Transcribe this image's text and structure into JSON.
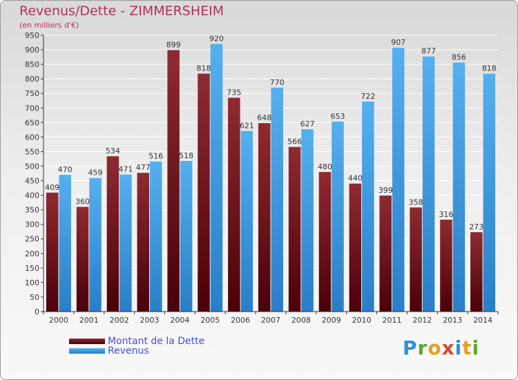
{
  "chart_data": {
    "type": "bar",
    "title": "Revenus/Dette - ZIMMERSHEIM",
    "subtitle": "(en milliers d'€)",
    "categories": [
      "2000",
      "2001",
      "2002",
      "2003",
      "2004",
      "2005",
      "2006",
      "2007",
      "2008",
      "2009",
      "2010",
      "2011",
      "2012",
      "2013",
      "2014"
    ],
    "series": [
      {
        "name": "Montant de la Dette",
        "values": [
          409,
          360,
          534,
          477,
          899,
          818,
          735,
          648,
          566,
          480,
          440,
          399,
          358,
          316,
          273
        ]
      },
      {
        "name": "Revenus",
        "values": [
          470,
          459,
          471,
          516,
          518,
          920,
          621,
          770,
          627,
          653,
          722,
          907,
          877,
          856,
          818
        ]
      }
    ],
    "ylim": [
      0,
      950
    ],
    "ytick_step": 50,
    "grid": true,
    "legend": "bottom-left",
    "colors": {
      "debt": "#7a1a22",
      "revenue": "#3d9de6",
      "title": "#b0305e",
      "legend_text": "#4a4ae0"
    }
  },
  "legend": {
    "debt_label": "Montant de la Dette",
    "revenue_label": "Revenus"
  },
  "logo": {
    "letters": [
      "P",
      "r",
      "o",
      "x",
      "i",
      "t",
      "i"
    ],
    "colors": [
      "#2f8fd8",
      "#5aa832",
      "#e8a020",
      "#d84a2a",
      "#2f8fd8",
      "#e8a020",
      "#5aa832"
    ]
  }
}
